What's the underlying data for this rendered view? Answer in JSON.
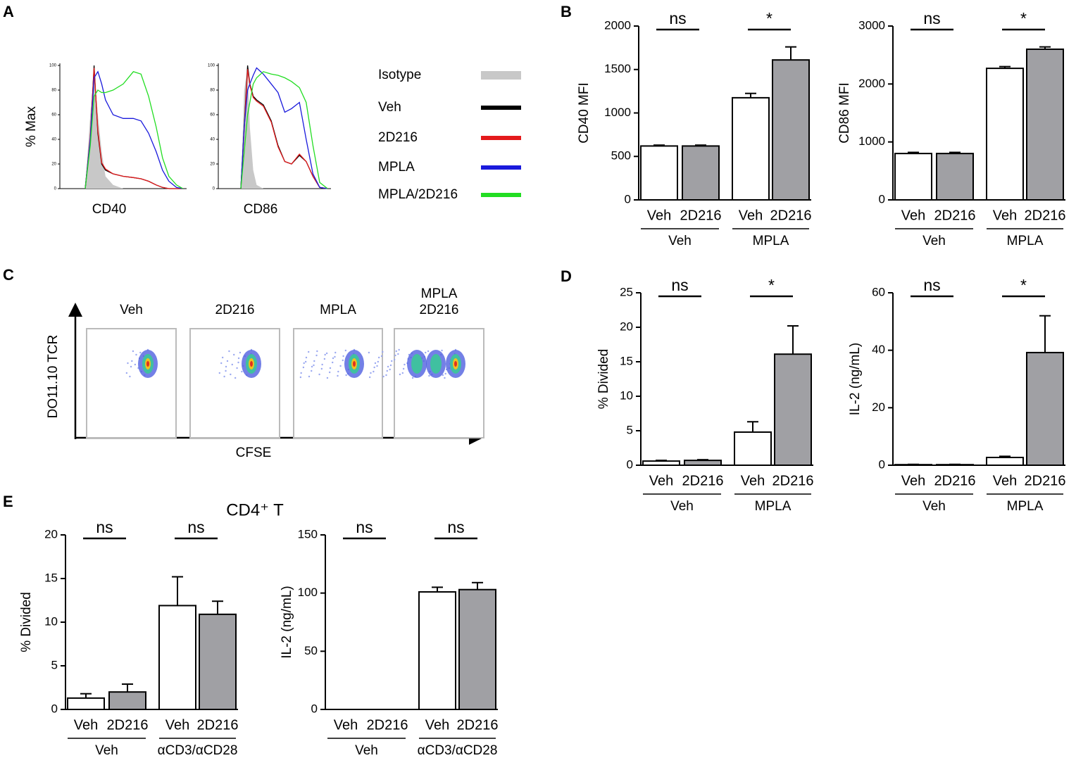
{
  "panels": [
    "A",
    "B",
    "C",
    "D",
    "E"
  ],
  "panel_e_title": "CD4⁺ T",
  "panel_c": {
    "titles": [
      [
        "Veh"
      ],
      [
        "2D216"
      ],
      [
        "MPLA"
      ],
      [
        "MPLA",
        "2D216"
      ]
    ],
    "ylabel": "DO11.10 TCR",
    "xlabel": "CFSE"
  },
  "chart_data": [
    {
      "type": "line",
      "xlabel": "CD40",
      "ylabel": "% Max",
      "xlim": [
        0,
        100
      ],
      "ylim": [
        0,
        100
      ],
      "yticks": [
        0,
        20,
        40,
        60,
        80,
        100
      ],
      "x": [
        20,
        24,
        27,
        30,
        33,
        36,
        42,
        50,
        58,
        64,
        70,
        76,
        81,
        86,
        92,
        97
      ],
      "series": [
        {
          "name": "Isotype",
          "color": "#c8c8c8",
          "area": true,
          "values": [
            0,
            60,
            95,
            60,
            30,
            10,
            3,
            0,
            0,
            0,
            0,
            0,
            0,
            0,
            0,
            0
          ]
        },
        {
          "name": "Veh",
          "color": "#000000",
          "values": [
            0,
            40,
            100,
            45,
            20,
            15,
            12,
            10,
            9,
            8,
            6,
            3,
            1,
            0,
            0,
            0
          ]
        },
        {
          "name": "2D216",
          "color": "#e41a1c",
          "values": [
            0,
            42,
            98,
            47,
            21,
            16,
            12,
            10,
            9,
            8,
            6,
            3,
            1,
            0,
            0,
            0
          ]
        },
        {
          "name": "MPLA",
          "color": "#1a1adc",
          "values": [
            0,
            40,
            90,
            95,
            85,
            72,
            60,
            57,
            57,
            55,
            45,
            30,
            15,
            6,
            1,
            0
          ]
        },
        {
          "name": "MPLA/2D216",
          "color": "#22dd22",
          "values": [
            0,
            35,
            75,
            80,
            78,
            78,
            80,
            85,
            95,
            93,
            75,
            50,
            25,
            10,
            3,
            0
          ]
        }
      ]
    },
    {
      "type": "line",
      "xlabel": "CD86",
      "xlim": [
        0,
        100
      ],
      "ylim": [
        0,
        100
      ],
      "yticks": [
        0,
        20,
        40,
        60,
        80,
        100
      ],
      "x": [
        20,
        23,
        26,
        28,
        31,
        34,
        40,
        47,
        53,
        59,
        65,
        72,
        78,
        84,
        90,
        97
      ],
      "series": [
        {
          "color": "#c8c8c8",
          "area": true,
          "values": [
            0,
            80,
            98,
            50,
            15,
            3,
            0,
            0,
            0,
            0,
            0,
            0,
            0,
            0,
            0,
            0
          ]
        },
        {
          "color": "#000000",
          "values": [
            0,
            50,
            100,
            85,
            75,
            72,
            68,
            55,
            35,
            22,
            20,
            27,
            22,
            10,
            1,
            0
          ]
        },
        {
          "color": "#e41a1c",
          "values": [
            0,
            48,
            97,
            84,
            74,
            71,
            67,
            54,
            34,
            22,
            20,
            28,
            22,
            10,
            1,
            0
          ]
        },
        {
          "color": "#1a1adc",
          "values": [
            0,
            50,
            80,
            85,
            92,
            98,
            93,
            85,
            78,
            62,
            65,
            70,
            40,
            12,
            1,
            0
          ]
        },
        {
          "color": "#22dd22",
          "values": [
            0,
            30,
            60,
            70,
            85,
            90,
            95,
            93,
            92,
            90,
            87,
            82,
            70,
            35,
            5,
            0
          ]
        }
      ]
    },
    {
      "type": "bar",
      "ylabel": "CD40 MFI",
      "ylim": [
        0,
        2000
      ],
      "yticks": [
        0,
        500,
        1000,
        1500,
        2000
      ],
      "categories": [
        "Veh",
        "2D216",
        "Veh",
        "2D216"
      ],
      "groups": [
        "Veh",
        "MPLA"
      ],
      "annotations": [
        "ns",
        "*"
      ],
      "colors": [
        "#ffffff",
        "#a0a0a4",
        "#ffffff",
        "#a0a0a4"
      ],
      "values": [
        620,
        620,
        1175,
        1610
      ],
      "errors": [
        10,
        10,
        50,
        150
      ]
    },
    {
      "type": "bar",
      "ylabel": "CD86 MFI",
      "ylim": [
        0,
        3000
      ],
      "yticks": [
        0,
        1000,
        2000,
        3000
      ],
      "categories": [
        "Veh",
        "2D216",
        "Veh",
        "2D216"
      ],
      "groups": [
        "Veh",
        "MPLA"
      ],
      "annotations": [
        "ns",
        "*"
      ],
      "colors": [
        "#ffffff",
        "#a0a0a4",
        "#ffffff",
        "#a0a0a4"
      ],
      "values": [
        800,
        800,
        2270,
        2600
      ],
      "errors": [
        20,
        20,
        30,
        40
      ]
    },
    {
      "type": "bar",
      "ylabel": "% Divided",
      "ylim": [
        0,
        25
      ],
      "yticks": [
        0,
        5,
        10,
        15,
        20,
        25
      ],
      "categories": [
        "Veh",
        "2D216",
        "Veh",
        "2D216"
      ],
      "groups": [
        "Veh",
        "MPLA"
      ],
      "annotations": [
        "ns",
        "*"
      ],
      "colors": [
        "#ffffff",
        "#a0a0a4",
        "#ffffff",
        "#a0a0a4"
      ],
      "values": [
        0.6,
        0.7,
        4.8,
        16.1
      ],
      "errors": [
        0.1,
        0.1,
        1.5,
        4.1
      ]
    },
    {
      "type": "bar",
      "ylabel": "IL-2 (ng/mL)",
      "ylim": [
        0,
        60
      ],
      "yticks": [
        0,
        20,
        40,
        60
      ],
      "categories": [
        "Veh",
        "2D216",
        "Veh",
        "2D216"
      ],
      "groups": [
        "Veh",
        "MPLA"
      ],
      "annotations": [
        "ns",
        "*"
      ],
      "colors": [
        "#ffffff",
        "#a0a0a4",
        "#ffffff",
        "#a0a0a4"
      ],
      "values": [
        0.2,
        0.2,
        2.7,
        39.2
      ],
      "errors": [
        0.1,
        0.1,
        0.4,
        12.8
      ]
    },
    {
      "type": "bar",
      "ylabel": "% Divided",
      "ylim": [
        0,
        20
      ],
      "yticks": [
        0,
        5,
        10,
        15,
        20
      ],
      "categories": [
        "Veh",
        "2D216",
        "Veh",
        "2D216"
      ],
      "groups": [
        "Veh",
        "αCD3/αCD28"
      ],
      "annotations": [
        "ns",
        "ns"
      ],
      "colors": [
        "#ffffff",
        "#a0a0a4",
        "#ffffff",
        "#a0a0a4"
      ],
      "values": [
        1.3,
        2.0,
        11.9,
        10.9
      ],
      "errors": [
        0.5,
        0.9,
        3.3,
        1.5
      ]
    },
    {
      "type": "bar",
      "ylabel": "IL-2 (ng/mL)",
      "ylim": [
        0,
        150
      ],
      "yticks": [
        0,
        50,
        100,
        150
      ],
      "categories": [
        "Veh",
        "2D216",
        "Veh",
        "2D216"
      ],
      "groups": [
        "Veh",
        "αCD3/αCD28"
      ],
      "annotations": [
        "ns",
        "ns"
      ],
      "colors": [
        "#ffffff",
        "#a0a0a4",
        "#ffffff",
        "#a0a0a4"
      ],
      "values": [
        0,
        0,
        101,
        103
      ],
      "errors": [
        0,
        0,
        4,
        6
      ]
    }
  ]
}
